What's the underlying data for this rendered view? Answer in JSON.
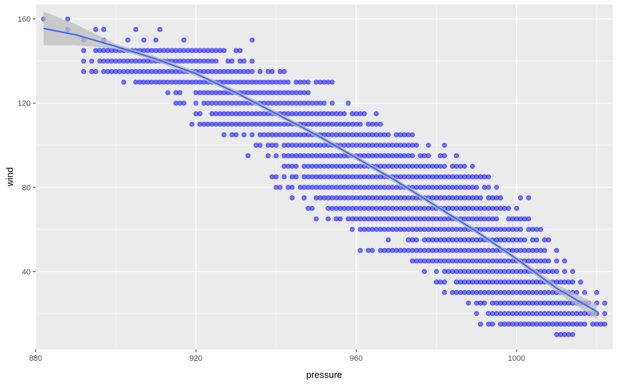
{
  "chart_data": {
    "type": "scatter",
    "title": "",
    "xlabel": "pressure",
    "ylabel": "wind",
    "xlim": [
      880,
      1024
    ],
    "ylim": [
      3,
      167
    ],
    "x_ticks": [
      880,
      920,
      960,
      1000
    ],
    "y_ticks": [
      40,
      80,
      120,
      160
    ],
    "grid": true,
    "legend": "none",
    "colors": {
      "panel": "#ebebeb",
      "grid": "#ffffff",
      "points": "#0000ff",
      "smooth_line": "#3366ff",
      "smooth_band": "#bdbdbd"
    },
    "points_summary": [
      {
        "wind": 160,
        "pressure_min": 882,
        "pressure_max": 889,
        "samples": [
          882,
          888
        ]
      },
      {
        "wind": 155,
        "pressure_min": 888,
        "pressure_max": 911,
        "samples": [
          888,
          895,
          897,
          905,
          911
        ]
      },
      {
        "wind": 150,
        "pressure_min": 892,
        "pressure_max": 934,
        "samples": [
          892,
          897,
          903,
          907,
          910,
          917,
          934
        ]
      },
      {
        "wind": 145,
        "pressure_min": 892,
        "pressure_max": 931
      },
      {
        "wind": 140,
        "pressure_min": 892,
        "pressure_max": 934
      },
      {
        "wind": 135,
        "pressure_min": 892,
        "pressure_max": 942
      },
      {
        "wind": 130,
        "pressure_min": 902,
        "pressure_max": 954
      },
      {
        "wind": 125,
        "pressure_min": 913,
        "pressure_max": 948
      },
      {
        "wind": 120,
        "pressure_min": 915,
        "pressure_max": 958
      },
      {
        "wind": 115,
        "pressure_min": 920,
        "pressure_max": 965
      },
      {
        "wind": 110,
        "pressure_min": 919,
        "pressure_max": 966
      },
      {
        "wind": 105,
        "pressure_min": 927,
        "pressure_max": 974
      },
      {
        "wind": 100,
        "pressure_min": 935,
        "pressure_max": 982
      },
      {
        "wind": 95,
        "pressure_min": 933,
        "pressure_max": 985
      },
      {
        "wind": 90,
        "pressure_min": 942,
        "pressure_max": 989
      },
      {
        "wind": 85,
        "pressure_min": 939,
        "pressure_max": 993
      },
      {
        "wind": 80,
        "pressure_min": 940,
        "pressure_max": 995
      },
      {
        "wind": 75,
        "pressure_min": 944,
        "pressure_max": 1003
      },
      {
        "wind": 70,
        "pressure_min": 948,
        "pressure_max": 1000
      },
      {
        "wind": 65,
        "pressure_min": 950,
        "pressure_max": 1003
      },
      {
        "wind": 60,
        "pressure_min": 959,
        "pressure_max": 1006
      },
      {
        "wind": 55,
        "pressure_min": 968,
        "pressure_max": 1008
      },
      {
        "wind": 50,
        "pressure_min": 961,
        "pressure_max": 1010
      },
      {
        "wind": 45,
        "pressure_min": 974,
        "pressure_max": 1012
      },
      {
        "wind": 40,
        "pressure_min": 977,
        "pressure_max": 1014
      },
      {
        "wind": 35,
        "pressure_min": 980,
        "pressure_max": 1016
      },
      {
        "wind": 30,
        "pressure_min": 982,
        "pressure_max": 1020
      },
      {
        "wind": 25,
        "pressure_min": 988,
        "pressure_max": 1022
      },
      {
        "wind": 20,
        "pressure_min": 990,
        "pressure_max": 1022
      },
      {
        "wind": 15,
        "pressure_min": 991,
        "pressure_max": 1022
      },
      {
        "wind": 10,
        "pressure_min": 1010,
        "pressure_max": 1014
      }
    ],
    "smooth": {
      "method": "loess",
      "x": [
        882,
        890,
        900,
        910,
        920,
        930,
        940,
        950,
        960,
        970,
        980,
        990,
        1000,
        1010,
        1020
      ],
      "y": [
        155.5,
        152.5,
        147,
        141,
        134,
        125,
        115,
        105,
        94,
        83,
        71,
        59,
        46,
        32,
        21
      ]
    },
    "band_halfwidth": {
      "x": [
        882,
        890,
        895,
        900,
        1000,
        1010,
        1015,
        1020
      ],
      "hw": [
        8,
        5,
        2.5,
        1.2,
        1.2,
        1.8,
        2.5,
        3.5
      ]
    }
  }
}
